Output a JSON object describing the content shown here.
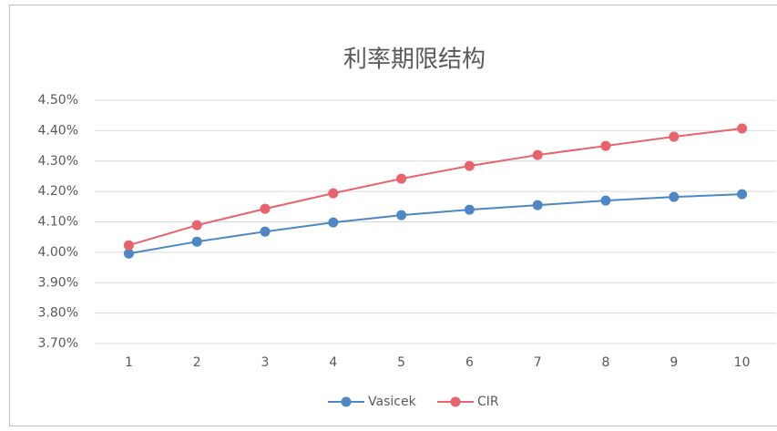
{
  "chart_data": {
    "type": "line",
    "title": "利率期限结构",
    "categories": [
      "1",
      "2",
      "3",
      "4",
      "5",
      "6",
      "7",
      "8",
      "9",
      "10"
    ],
    "series": [
      {
        "name": "Vasicek",
        "color": "#4e86c6",
        "values": [
          3.996,
          4.035,
          4.068,
          4.098,
          4.122,
          4.14,
          4.155,
          4.17,
          4.182,
          4.191
        ]
      },
      {
        "name": "CIR",
        "color": "#e8636b",
        "values": [
          4.023,
          4.089,
          4.143,
          4.194,
          4.242,
          4.284,
          4.32,
          4.35,
          4.38,
          4.407
        ]
      }
    ],
    "ylim": [
      3.7,
      4.5
    ],
    "yticks": [
      {
        "value": 3.7,
        "label": "3.70%"
      },
      {
        "value": 3.8,
        "label": "3.80%"
      },
      {
        "value": 3.9,
        "label": "3.90%"
      },
      {
        "value": 4.0,
        "label": "4.00%"
      },
      {
        "value": 4.1,
        "label": "4.10%"
      },
      {
        "value": 4.2,
        "label": "4.20%"
      },
      {
        "value": 4.3,
        "label": "4.30%"
      },
      {
        "value": 4.4,
        "label": "4.40%"
      },
      {
        "value": 4.5,
        "label": "4.50%"
      }
    ],
    "grid": true,
    "legend": "bottom"
  }
}
